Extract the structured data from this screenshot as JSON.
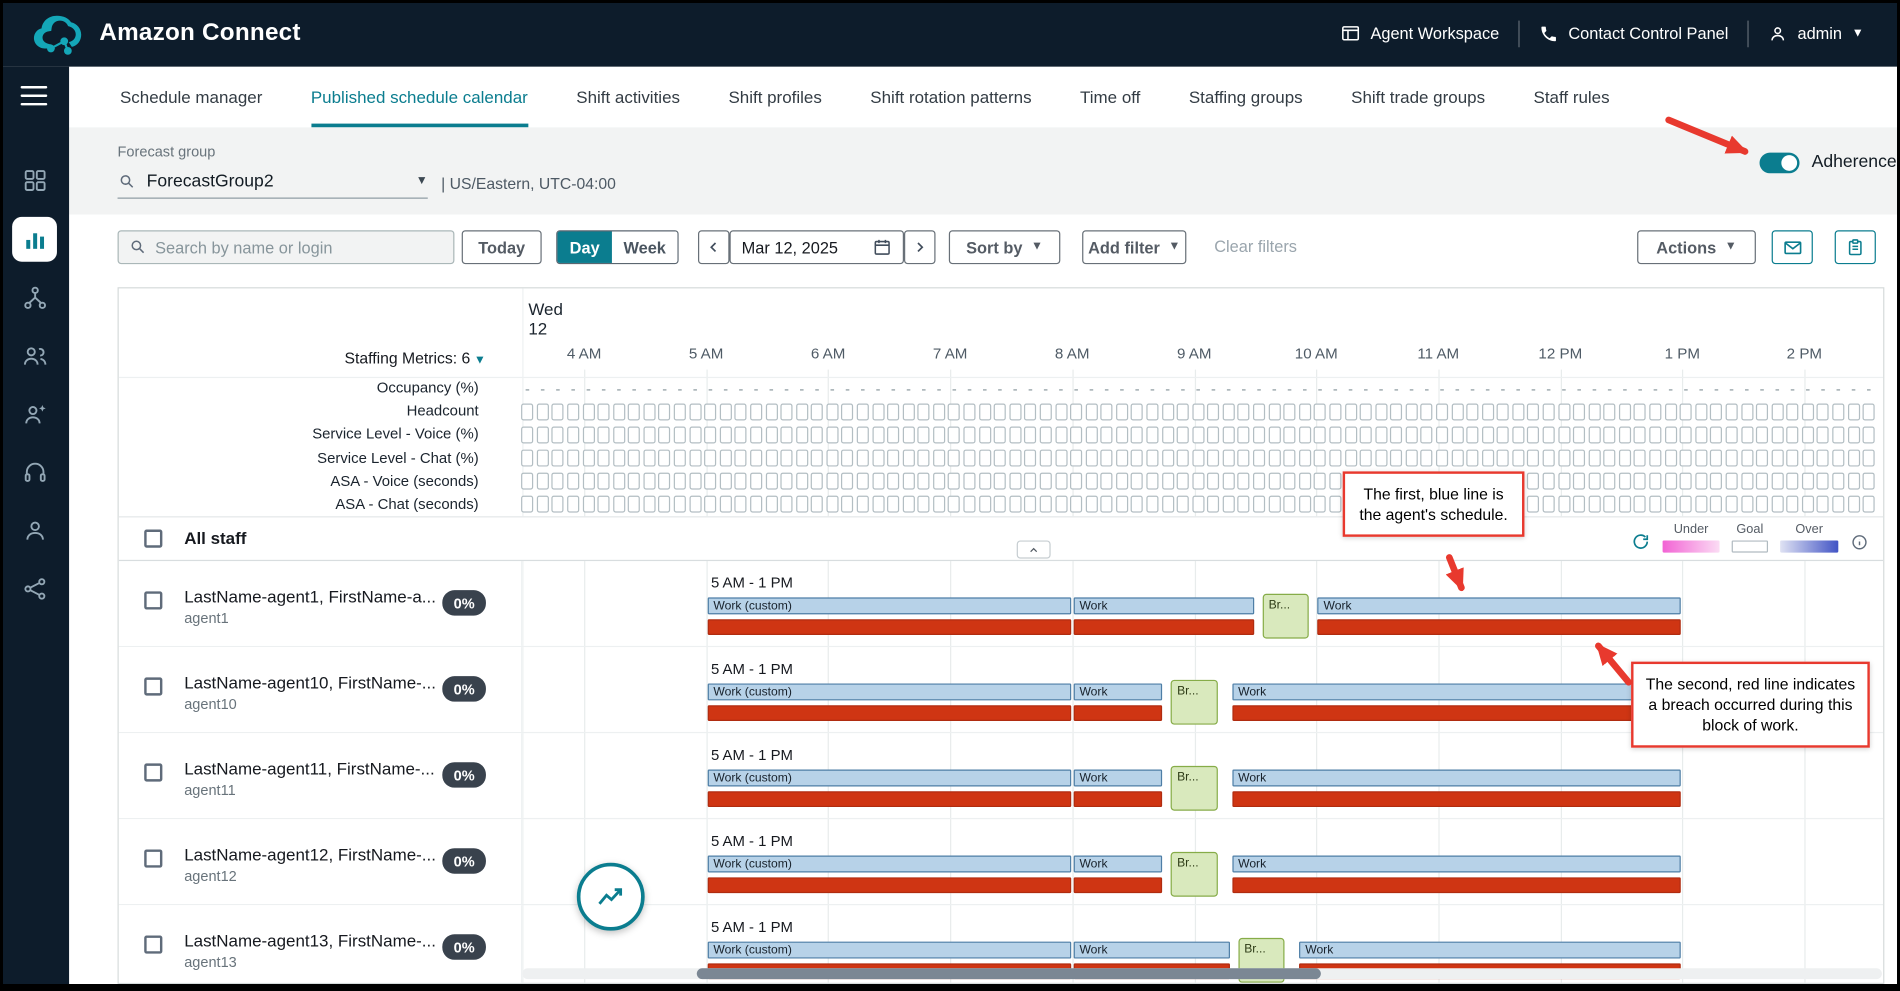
{
  "colors": {
    "header_bg": "#0d1c2b",
    "accent_teal": "#0b7d8f",
    "schedule_blue_fill": "#b7d2e8",
    "schedule_blue_border": "#4e7ea6",
    "adherence_red": "#cf3513",
    "break_green_fill": "#d9e9bd",
    "break_green_border": "#86ac48",
    "badge_bg": "#39424d",
    "annotation_red": "#e8392e",
    "legend_under_start": "#f263d4",
    "legend_under_end": "#fbdcf4",
    "legend_over_start": "#dfe2f3",
    "legend_over_end": "#4254c5"
  },
  "header": {
    "app_title": "Amazon Connect",
    "agent_workspace": "Agent Workspace",
    "contact_control_panel": "Contact Control Panel",
    "user": "admin"
  },
  "sidebar": {
    "icons": [
      "apps-grid",
      "analytics",
      "flows",
      "users",
      "agent-evaluation",
      "headset",
      "customer-profiles",
      "integrations"
    ],
    "active": "analytics"
  },
  "tabs": {
    "active_index": 1,
    "items": [
      "Schedule manager",
      "Published schedule calendar",
      "Shift activities",
      "Shift profiles",
      "Shift rotation patterns",
      "Time off",
      "Staffing groups",
      "Shift trade groups",
      "Staff rules"
    ]
  },
  "filters": {
    "forecast_group_label": "Forecast group",
    "forecast_group_value": "ForecastGroup2",
    "timezone": "| US/Eastern, UTC-04:00",
    "adherence_label": "Adherence",
    "adherence_on": true
  },
  "toolbar": {
    "search_placeholder": "Search by name or login",
    "today": "Today",
    "day": "Day",
    "week": "Week",
    "date": "Mar 12, 2025",
    "sort_by": "Sort by",
    "add_filter": "Add filter",
    "clear_filters": "Clear filters",
    "actions": "Actions"
  },
  "calendar": {
    "day_name": "Wed",
    "day_number": "12",
    "staffing_metrics_label": "Staffing Metrics: 6",
    "metric_rows": [
      "Occupancy (%)",
      "Headcount",
      "Service Level - Voice (%)",
      "Service Level - Chat (%)",
      "ASA - Voice (seconds)",
      "ASA - Chat (seconds)"
    ],
    "hours": [
      "4 AM",
      "5 AM",
      "6 AM",
      "7 AM",
      "8 AM",
      "9 AM",
      "10 AM",
      "11 AM",
      "12 PM",
      "1 PM",
      "2 PM"
    ],
    "all_staff_label": "All staff",
    "legend": {
      "under": "Under",
      "goal": "Goal",
      "over": "Over"
    },
    "agents": [
      {
        "name": "LastName-agent1, FirstName-a...",
        "login": "agent1",
        "adherence": "0%",
        "shift_label": "5 AM - 1 PM",
        "segments": [
          {
            "type": "work",
            "label": "Work (custom)",
            "start": 5,
            "end": 8
          },
          {
            "type": "work",
            "label": "Work",
            "start": 8,
            "end": 9.5
          },
          {
            "type": "break",
            "label": "Br...",
            "start": 9.55,
            "end": 9.95
          },
          {
            "type": "work",
            "label": "Work",
            "start": 10,
            "end": 13
          }
        ]
      },
      {
        "name": "LastName-agent10, FirstName-...",
        "login": "agent10",
        "adherence": "0%",
        "shift_label": "5 AM - 1 PM",
        "segments": [
          {
            "type": "work",
            "label": "Work (custom)",
            "start": 5,
            "end": 8
          },
          {
            "type": "work",
            "label": "Work",
            "start": 8,
            "end": 8.75
          },
          {
            "type": "break",
            "label": "Br...",
            "start": 8.8,
            "end": 9.2
          },
          {
            "type": "work",
            "label": "Work",
            "start": 9.3,
            "end": 13
          }
        ]
      },
      {
        "name": "LastName-agent11, FirstName-...",
        "login": "agent11",
        "adherence": "0%",
        "shift_label": "5 AM - 1 PM",
        "segments": [
          {
            "type": "work",
            "label": "Work (custom)",
            "start": 5,
            "end": 8
          },
          {
            "type": "work",
            "label": "Work",
            "start": 8,
            "end": 8.75
          },
          {
            "type": "break",
            "label": "Br...",
            "start": 8.8,
            "end": 9.2
          },
          {
            "type": "work",
            "label": "Work",
            "start": 9.3,
            "end": 13
          }
        ]
      },
      {
        "name": "LastName-agent12, FirstName-...",
        "login": "agent12",
        "adherence": "0%",
        "shift_label": "5 AM - 1 PM",
        "segments": [
          {
            "type": "work",
            "label": "Work (custom)",
            "start": 5,
            "end": 8
          },
          {
            "type": "work",
            "label": "Work",
            "start": 8,
            "end": 8.75
          },
          {
            "type": "break",
            "label": "Br...",
            "start": 8.8,
            "end": 9.2
          },
          {
            "type": "work",
            "label": "Work",
            "start": 9.3,
            "end": 13
          }
        ]
      },
      {
        "name": "LastName-agent13, FirstName-...",
        "login": "agent13",
        "adherence": "0%",
        "shift_label": "5 AM - 1 PM",
        "segments": [
          {
            "type": "work",
            "label": "Work (custom)",
            "start": 5,
            "end": 8
          },
          {
            "type": "work",
            "label": "Work",
            "start": 8,
            "end": 9.3
          },
          {
            "type": "break",
            "label": "Br...",
            "start": 9.35,
            "end": 9.75
          },
          {
            "type": "work",
            "label": "Work",
            "start": 9.85,
            "end": 13
          }
        ]
      }
    ]
  },
  "annotations": {
    "callout_blue": "The first, blue line is the agent's schedule.",
    "callout_red": "The second, red line indicates a breach occurred during this block of work."
  }
}
